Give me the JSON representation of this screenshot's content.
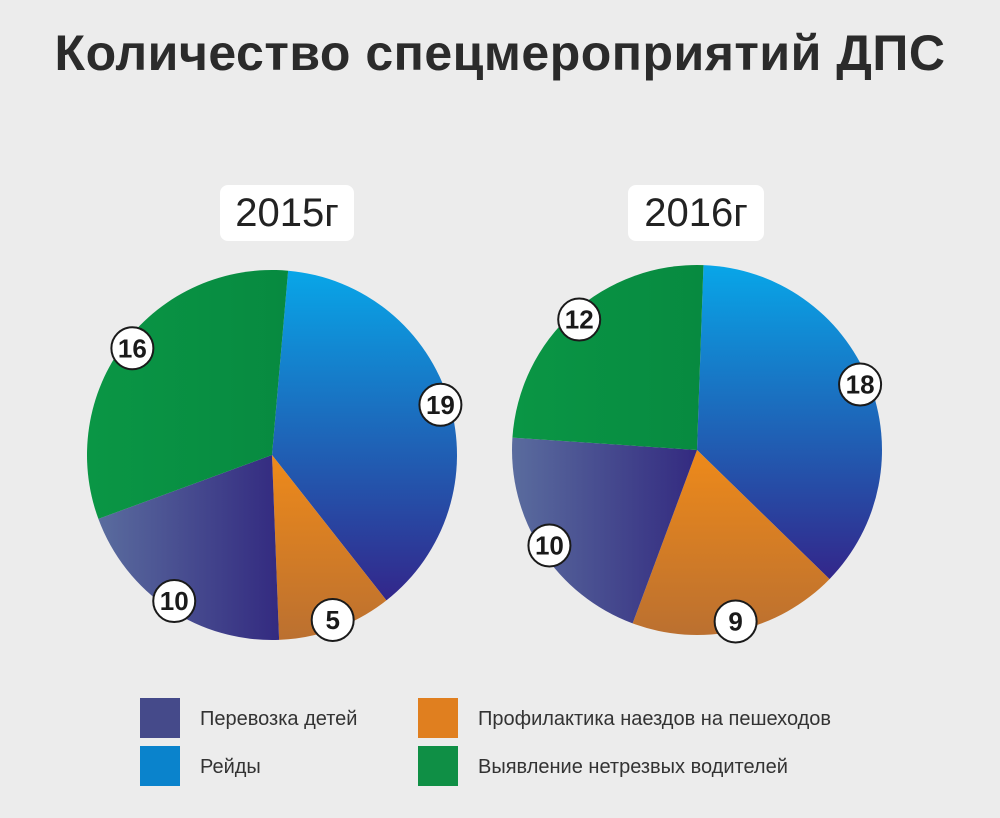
{
  "title": "Количество спецмероприятий ДПС",
  "chart_data": [
    {
      "type": "pie",
      "title": "2015г",
      "slices": [
        {
          "label": "Рейды",
          "value": 19
        },
        {
          "label": "Профилактика наездов на пешеходов",
          "value": 5
        },
        {
          "label": "Перевозка детей",
          "value": 10
        },
        {
          "label": "Выявление нетрезвых водителей",
          "value": 16
        }
      ]
    },
    {
      "type": "pie",
      "title": "2016г",
      "slices": [
        {
          "label": "Рейды",
          "value": 18
        },
        {
          "label": "Профилактика наездов на пешеходов",
          "value": 9
        },
        {
          "label": "Перевозка детей",
          "value": 10
        },
        {
          "label": "Выявление нетрезвых водителей",
          "value": 12
        }
      ]
    }
  ],
  "legend": [
    {
      "label": "Перевозка детей",
      "color": "#454a8a"
    },
    {
      "label": "Профилактика наездов на пешеходов",
      "color": "#e07f1f"
    },
    {
      "label": "Рейды",
      "color": "#0a83cc"
    },
    {
      "label": "Выявление нетрезвых водителей",
      "color": "#0f8f45"
    }
  ],
  "colors": {
    "Рейды": "#1684cf",
    "Профилактика наездов на пешеходов": "#df7f20",
    "Перевозка детей": "#454a8a",
    "Выявление нетрезвых водителей": "#079145"
  }
}
